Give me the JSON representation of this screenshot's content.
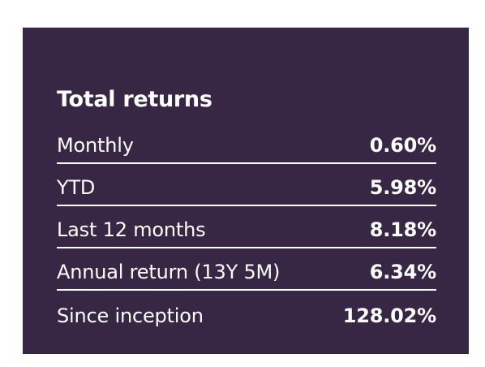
{
  "card": {
    "title": "Total returns",
    "background_color": "#372644",
    "text_color": "#ffffff",
    "rows": [
      {
        "label": "Monthly",
        "value": "0.60%"
      },
      {
        "label": "YTD",
        "value": "5.98%"
      },
      {
        "label": "Last 12 months",
        "value": "8.18%"
      },
      {
        "label": "Annual return (13Y 5M)",
        "value": "6.34%"
      },
      {
        "label": "Since inception",
        "value": "128.02%"
      }
    ]
  }
}
